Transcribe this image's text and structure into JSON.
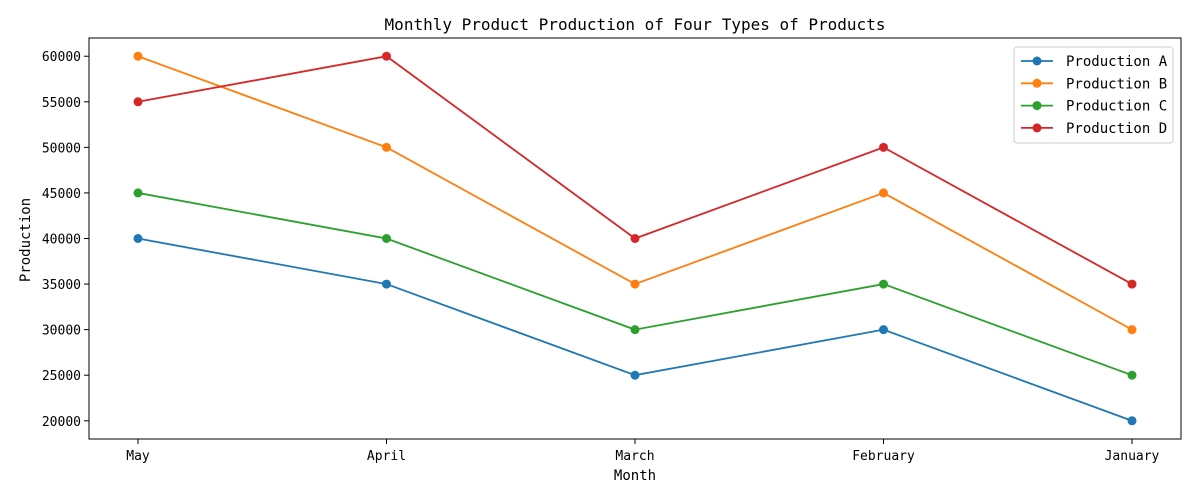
{
  "chart_data": {
    "type": "line",
    "title": "Monthly Product Production of Four Types of Products",
    "xlabel": "Month",
    "ylabel": "Production",
    "categories": [
      "May",
      "April",
      "March",
      "February",
      "January"
    ],
    "ylim": [
      18000,
      62000
    ],
    "yticks": [
      20000,
      25000,
      30000,
      35000,
      40000,
      45000,
      50000,
      55000,
      60000
    ],
    "grid": false,
    "legend_position": "top-right",
    "series": [
      {
        "name": "Production A",
        "color": "#1f77b4",
        "values": [
          40000,
          35000,
          25000,
          30000,
          20000
        ]
      },
      {
        "name": "Production B",
        "color": "#ff7f0e",
        "values": [
          60000,
          50000,
          35000,
          45000,
          30000
        ]
      },
      {
        "name": "Production C",
        "color": "#2ca02c",
        "values": [
          45000,
          40000,
          30000,
          35000,
          25000
        ]
      },
      {
        "name": "Production D",
        "color": "#d62728",
        "values": [
          55000,
          60000,
          40000,
          50000,
          35000
        ]
      }
    ]
  }
}
